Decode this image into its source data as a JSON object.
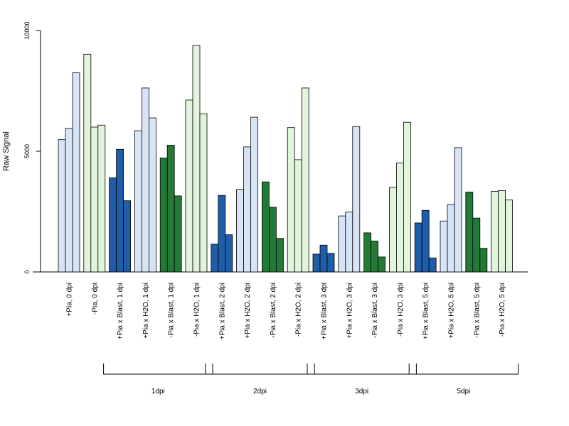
{
  "chart_data": {
    "type": "bar",
    "ylabel": "Raw Signal",
    "xlabel": "",
    "ylim": [
      0,
      10000
    ],
    "yticks": [
      0,
      5000,
      10000
    ],
    "grid": false,
    "legend": "none",
    "colors": {
      "light_blue": "#d6e4f5",
      "light_green": "#e2f5dc",
      "dark_blue": "#1f5da8",
      "dark_green": "#237a36"
    },
    "categories": [
      {
        "label": "+Pia, 0 dpi",
        "color": "light_blue",
        "values": [
          5480,
          5950,
          8250
        ]
      },
      {
        "label": "-Pia, 0 dpi",
        "color": "light_green",
        "values": [
          9020,
          6000,
          6080
        ]
      },
      {
        "label": "+Pia x Blast, 1 dpi",
        "color": "dark_blue",
        "values": [
          3900,
          5080,
          2950
        ]
      },
      {
        "label": "+Pia x H2O, 1 dpi",
        "color": "light_blue",
        "values": [
          5850,
          7620,
          6380
        ]
      },
      {
        "label": "-Pia x Blast, 1 dpi",
        "color": "dark_green",
        "values": [
          4720,
          5250,
          3150
        ]
      },
      {
        "label": "-Pia x H2O, 1 dpi",
        "color": "light_green",
        "values": [
          7120,
          9380,
          6550
        ]
      },
      {
        "label": "+Pia x Blast, 2 dpi",
        "color": "dark_blue",
        "values": [
          1150,
          3170,
          1540
        ]
      },
      {
        "label": "+Pia x H2O, 2 dpi",
        "color": "light_blue",
        "values": [
          3420,
          5180,
          6410
        ]
      },
      {
        "label": "-Pia x Blast, 2 dpi",
        "color": "dark_green",
        "values": [
          3730,
          2680,
          1390
        ]
      },
      {
        "label": "-Pia x H2O, 2 dpi",
        "color": "light_green",
        "values": [
          5980,
          4650,
          7620
        ]
      },
      {
        "label": "+Pia x Blast, 3 dpi",
        "color": "dark_blue",
        "values": [
          740,
          1110,
          770
        ]
      },
      {
        "label": "+Pia x H2O, 3 dpi",
        "color": "light_blue",
        "values": [
          2320,
          2480,
          6020
        ]
      },
      {
        "label": "-Pia x Blast, 3 dpi",
        "color": "dark_green",
        "values": [
          1620,
          1280,
          620
        ]
      },
      {
        "label": "-Pia x H2O, 3 dpi",
        "color": "light_green",
        "values": [
          3500,
          4510,
          6200
        ]
      },
      {
        "label": "+Pia x Blast, 5 dpi",
        "color": "dark_blue",
        "values": [
          2030,
          2550,
          580
        ]
      },
      {
        "label": "+Pia x H2O, 5 dpi",
        "color": "light_blue",
        "values": [
          2110,
          2790,
          5150
        ]
      },
      {
        "label": "-Pia x Blast, 5 dpi",
        "color": "dark_green",
        "values": [
          3310,
          2230,
          980
        ]
      },
      {
        "label": "-Pia x H2O, 5 dpi",
        "color": "light_green",
        "values": [
          3340,
          3370,
          2980
        ]
      }
    ],
    "groups": [
      {
        "label": "1dpi",
        "from": 2,
        "to": 5
      },
      {
        "label": "2dpi",
        "from": 6,
        "to": 9
      },
      {
        "label": "3dpi",
        "from": 10,
        "to": 13
      },
      {
        "label": "5dpi",
        "from": 14,
        "to": 17
      }
    ]
  }
}
